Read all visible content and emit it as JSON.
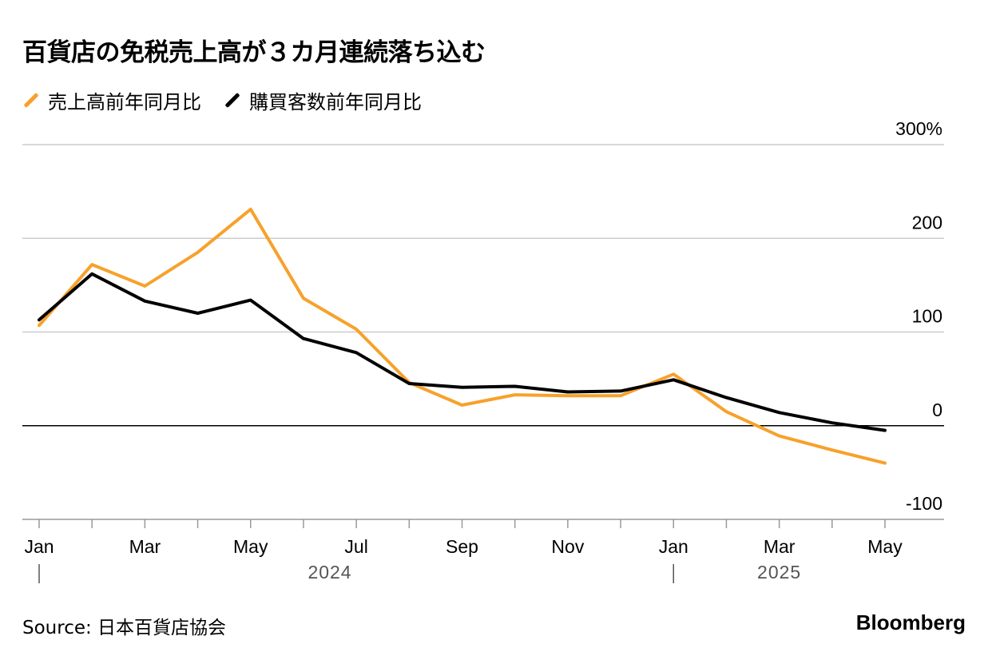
{
  "title": "百貨店の免税売上高が３カ月連続落ち込む",
  "source": "Source: 日本百貨店協会",
  "brand": "Bloomberg",
  "chart_data": {
    "type": "line",
    "title": "百貨店の免税売上高が３カ月連続落ち込む",
    "x": [
      "2024-01",
      "2024-02",
      "2024-03",
      "2024-04",
      "2024-05",
      "2024-06",
      "2024-07",
      "2024-08",
      "2024-09",
      "2024-10",
      "2024-11",
      "2024-12",
      "2025-01",
      "2025-02",
      "2025-03",
      "2025-04",
      "2025-05"
    ],
    "x_tick_labels": [
      {
        "index": 0,
        "label": "Jan"
      },
      {
        "index": 2,
        "label": "Mar"
      },
      {
        "index": 4,
        "label": "May"
      },
      {
        "index": 6,
        "label": "Jul"
      },
      {
        "index": 8,
        "label": "Sep"
      },
      {
        "index": 10,
        "label": "Nov"
      },
      {
        "index": 12,
        "label": "Jan"
      },
      {
        "index": 14,
        "label": "Mar"
      },
      {
        "index": 16,
        "label": "May"
      }
    ],
    "year_labels": [
      {
        "label": "2024",
        "start": 0,
        "end": 11
      },
      {
        "label": "2025",
        "start": 12,
        "end": 16
      }
    ],
    "y_ticks": [
      {
        "value": 300,
        "label": "300%"
      },
      {
        "value": 200,
        "label": "200"
      },
      {
        "value": 100,
        "label": "100"
      },
      {
        "value": 0,
        "label": "0"
      },
      {
        "value": -100,
        "label": "-100"
      }
    ],
    "ylim": [
      -100,
      300
    ],
    "grid": true,
    "legend_position": "top-left",
    "series": [
      {
        "name": "売上高前年同月比",
        "color": "#f7a12b",
        "values": [
          107,
          172,
          149,
          185,
          231,
          136,
          103,
          46,
          22,
          33,
          32,
          32,
          55,
          15,
          -11,
          -26,
          -40
        ]
      },
      {
        "name": "購買客数前年同月比",
        "color": "#000000",
        "values": [
          113,
          162,
          133,
          120,
          134,
          93,
          78,
          45,
          41,
          42,
          36,
          37,
          49,
          30,
          14,
          3,
          -5
        ]
      }
    ]
  }
}
